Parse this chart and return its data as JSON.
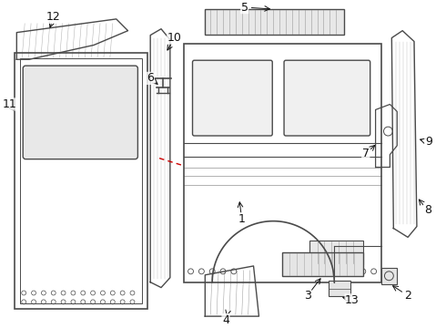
{
  "background_color": "#ffffff",
  "line_color": "#4a4a4a",
  "red_dashed_color": "#cc0000",
  "text_color": "#111111",
  "font_size": 9
}
